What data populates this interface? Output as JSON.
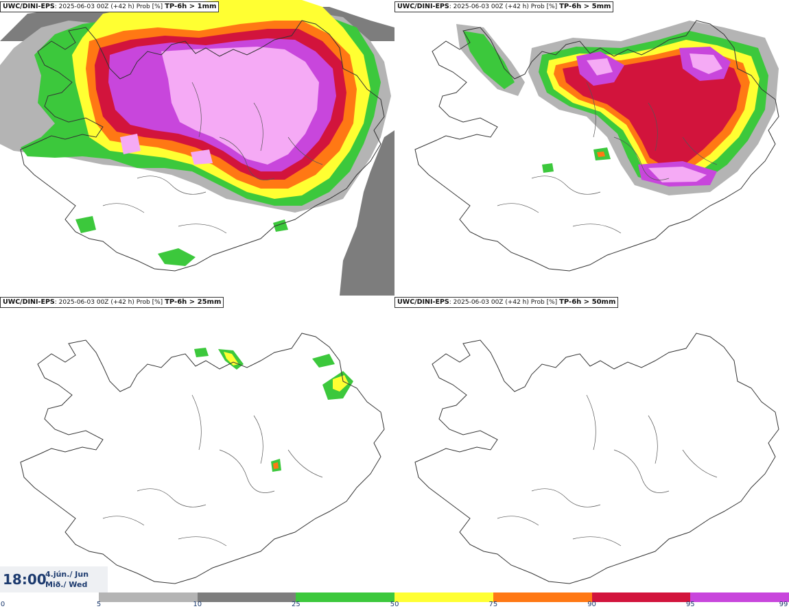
{
  "panels": [
    {
      "model": "UWC/DINI-EPS",
      "info": ": 2025-06-03 00Z (+42 h) Prob [%]",
      "threshold": "TP-6h > 1mm"
    },
    {
      "model": "UWC/DINI-EPS",
      "info": ": 2025-06-03 00Z (+42 h) Prob [%]",
      "threshold": "TP-6h > 5mm"
    },
    {
      "model": "UWC/DINI-EPS",
      "info": ": 2025-06-03 00Z (+42 h) Prob [%]",
      "threshold": "TP-6h > 25mm"
    },
    {
      "model": "UWC/DINI-EPS",
      "info": ": 2025-06-03 00Z (+42 h) Prob [%]",
      "threshold": "TP-6h > 50mm"
    }
  ],
  "valid_time": {
    "time": "18:00",
    "date_line1": "4.jún./ Jun",
    "date_line2": "Mið./ Wed"
  },
  "colorbar": {
    "ticks": [
      "0",
      "5",
      "10",
      "25",
      "50",
      "75",
      "90",
      "95",
      "99"
    ],
    "colors": [
      "#ffffff",
      "#b4b4b4",
      "#7d7d7d",
      "#3cc83c",
      "#ffff32",
      "#ff7814",
      "#d2143c",
      "#c846dc",
      "#f5aaf5"
    ]
  },
  "icons": [
    "iceland-coastline-map"
  ]
}
